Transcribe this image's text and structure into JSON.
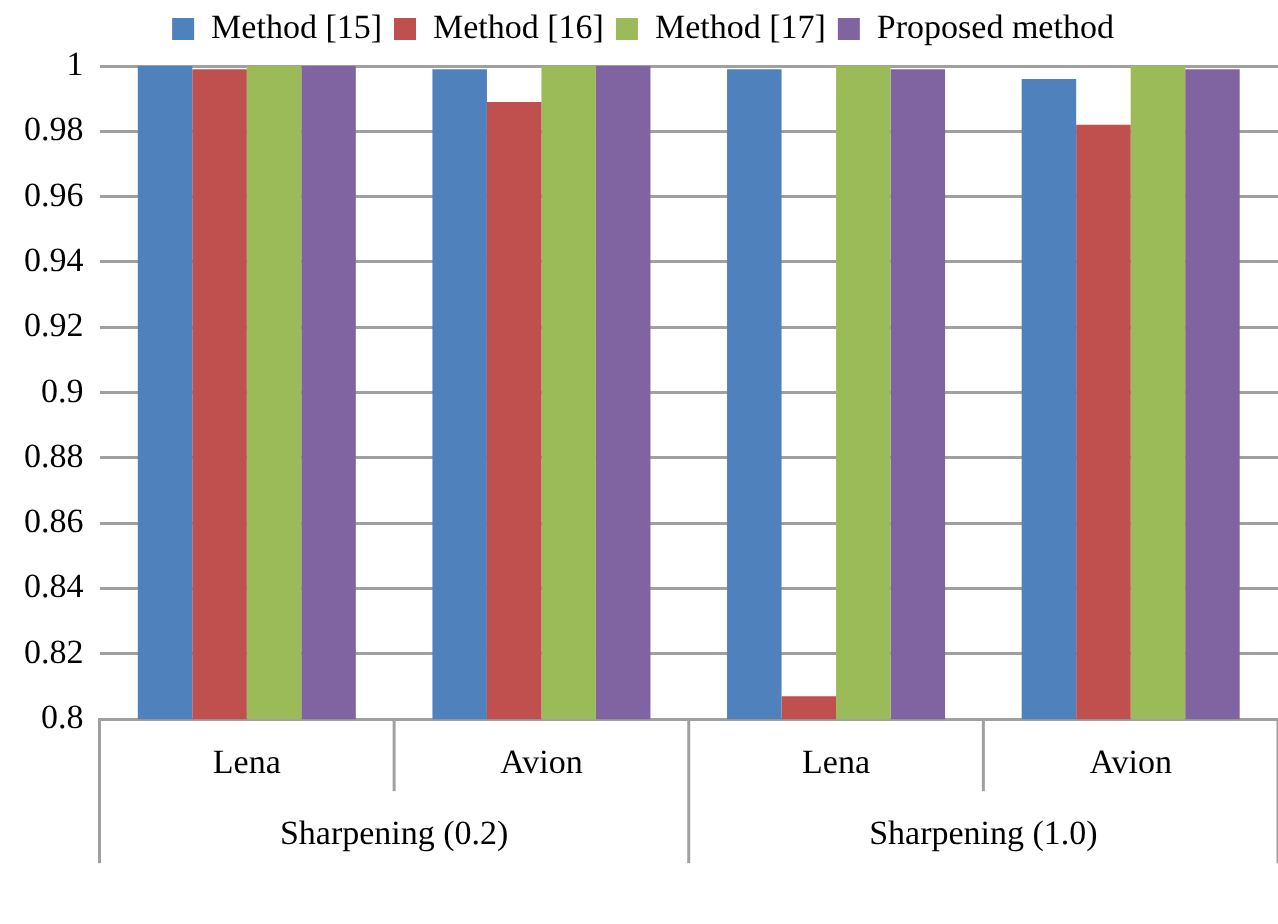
{
  "chart_data": {
    "type": "bar",
    "categories": [
      "Lena",
      "Avion",
      "Lena",
      "Avion"
    ],
    "series": [
      {
        "name": "Method [15]",
        "color": "#4f81bd",
        "values": [
          1,
          0.999,
          0.999,
          0.996
        ]
      },
      {
        "name": "Method [16]",
        "color": "#c0504d",
        "values": [
          0.999,
          0.989,
          0.807,
          0.982
        ]
      },
      {
        "name": "Method [17]",
        "color": "#9bbb59",
        "values": [
          1,
          1,
          1,
          1
        ]
      },
      {
        "name": "Proposed method",
        "color": "#8064a2",
        "values": [
          1,
          1,
          0.999,
          0.999
        ]
      }
    ],
    "annotations": [
      "Sharpening (0.2)",
      "Sharpening (1.0)"
    ],
    "ylim": [
      0.8,
      1
    ],
    "yticks": [
      0.8,
      0.82,
      0.84,
      0.86,
      0.88,
      0.9,
      0.92,
      0.94,
      0.96,
      0.98,
      1
    ],
    "grid": "y",
    "legend": "top"
  }
}
